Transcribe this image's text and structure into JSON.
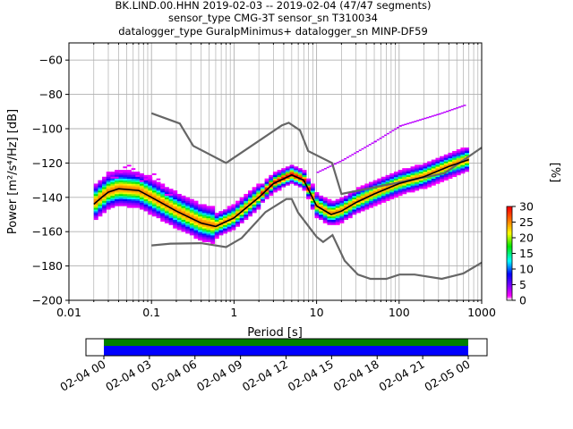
{
  "title_lines": [
    "BK.LIND.00.HHN   2019-02-03 -- 2019-02-04  (47/47 segments)",
    "sensor_type CMG-3T sensor_sn T310034",
    "datalogger_type GuralpMinimus+ datalogger_sn MINP-DF59"
  ],
  "chart_data": {
    "type": "heatmap",
    "xlabel": "Period [s]",
    "ylabel": "Power [m²/s⁴/Hz] [dB]",
    "xscale": "log",
    "xlim": [
      0.01,
      1000
    ],
    "ylim": [
      -200,
      -50
    ],
    "xticks": [
      0.01,
      0.1,
      1,
      10,
      100,
      1000
    ],
    "xtick_labels": [
      "0.01",
      "0.1",
      "1",
      "10",
      "100",
      "1000"
    ],
    "yticks": [
      -200,
      -180,
      -160,
      -140,
      -120,
      -100,
      -80,
      -60
    ],
    "ytick_labels": [
      "−200",
      "−180",
      "−160",
      "−140",
      "−120",
      "−100",
      "−80",
      "−60"
    ],
    "grid": true,
    "noise_models": {
      "high": [
        [
          0.1,
          -91
        ],
        [
          0.22,
          -97
        ],
        [
          0.32,
          -110
        ],
        [
          0.8,
          -120
        ],
        [
          3.8,
          -98
        ],
        [
          4.6,
          -96.5
        ],
        [
          6.3,
          -101
        ],
        [
          7.9,
          -113
        ],
        [
          15.4,
          -120
        ],
        [
          20,
          -138
        ],
        [
          354,
          -126
        ],
        [
          1000,
          -111
        ]
      ],
      "low": [
        [
          0.1,
          -168
        ],
        [
          0.17,
          -167
        ],
        [
          0.4,
          -166.7
        ],
        [
          0.8,
          -169
        ],
        [
          1.24,
          -163.7
        ],
        [
          2.4,
          -148.6
        ],
        [
          4.3,
          -141
        ],
        [
          5,
          -141
        ],
        [
          6,
          -149
        ],
        [
          10,
          -163
        ],
        [
          12,
          -166
        ],
        [
          15.6,
          -162
        ],
        [
          21.9,
          -177
        ],
        [
          31.6,
          -185
        ],
        [
          45,
          -187.5
        ],
        [
          70,
          -187.5
        ],
        [
          101,
          -185
        ],
        [
          154,
          -185
        ],
        [
          328,
          -187.5
        ],
        [
          600,
          -184.4
        ],
        [
          1000,
          -178
        ]
      ]
    },
    "mean_curve": [
      [
        0.02,
        -144
      ],
      [
        0.025,
        -140
      ],
      [
        0.03,
        -137
      ],
      [
        0.04,
        -135
      ],
      [
        0.07,
        -136
      ],
      [
        0.1,
        -140
      ],
      [
        0.2,
        -148
      ],
      [
        0.4,
        -155
      ],
      [
        0.6,
        -157
      ],
      [
        1,
        -152
      ],
      [
        2,
        -140
      ],
      [
        3,
        -132
      ],
      [
        5,
        -127
      ],
      [
        7,
        -130
      ],
      [
        10,
        -145
      ],
      [
        15,
        -150
      ],
      [
        20,
        -148
      ],
      [
        30,
        -143
      ],
      [
        50,
        -138
      ],
      [
        100,
        -132
      ],
      [
        200,
        -128
      ],
      [
        400,
        -122
      ],
      [
        700,
        -118
      ]
    ],
    "outlier_curve": [
      [
        10,
        -125
      ],
      [
        20,
        -118
      ],
      [
        50,
        -107
      ],
      [
        100,
        -98
      ],
      [
        300,
        -91
      ],
      [
        600,
        -86
      ]
    ],
    "colorbar": {
      "label": "[%]",
      "range": [
        0,
        30
      ],
      "ticks": [
        0,
        5,
        10,
        15,
        20,
        25,
        30
      ],
      "tick_labels": [
        "0",
        "5",
        "10",
        "15",
        "20",
        "25",
        "30"
      ]
    }
  },
  "timeline": {
    "tick_labels": [
      "02-04 00",
      "02-04 03",
      "02-04 06",
      "02-04 09",
      "02-04 12",
      "02-04 15",
      "02-04 18",
      "02-04 21",
      "02-05 00"
    ],
    "coverage_colors": [
      "#008000",
      "#0000ff"
    ]
  }
}
